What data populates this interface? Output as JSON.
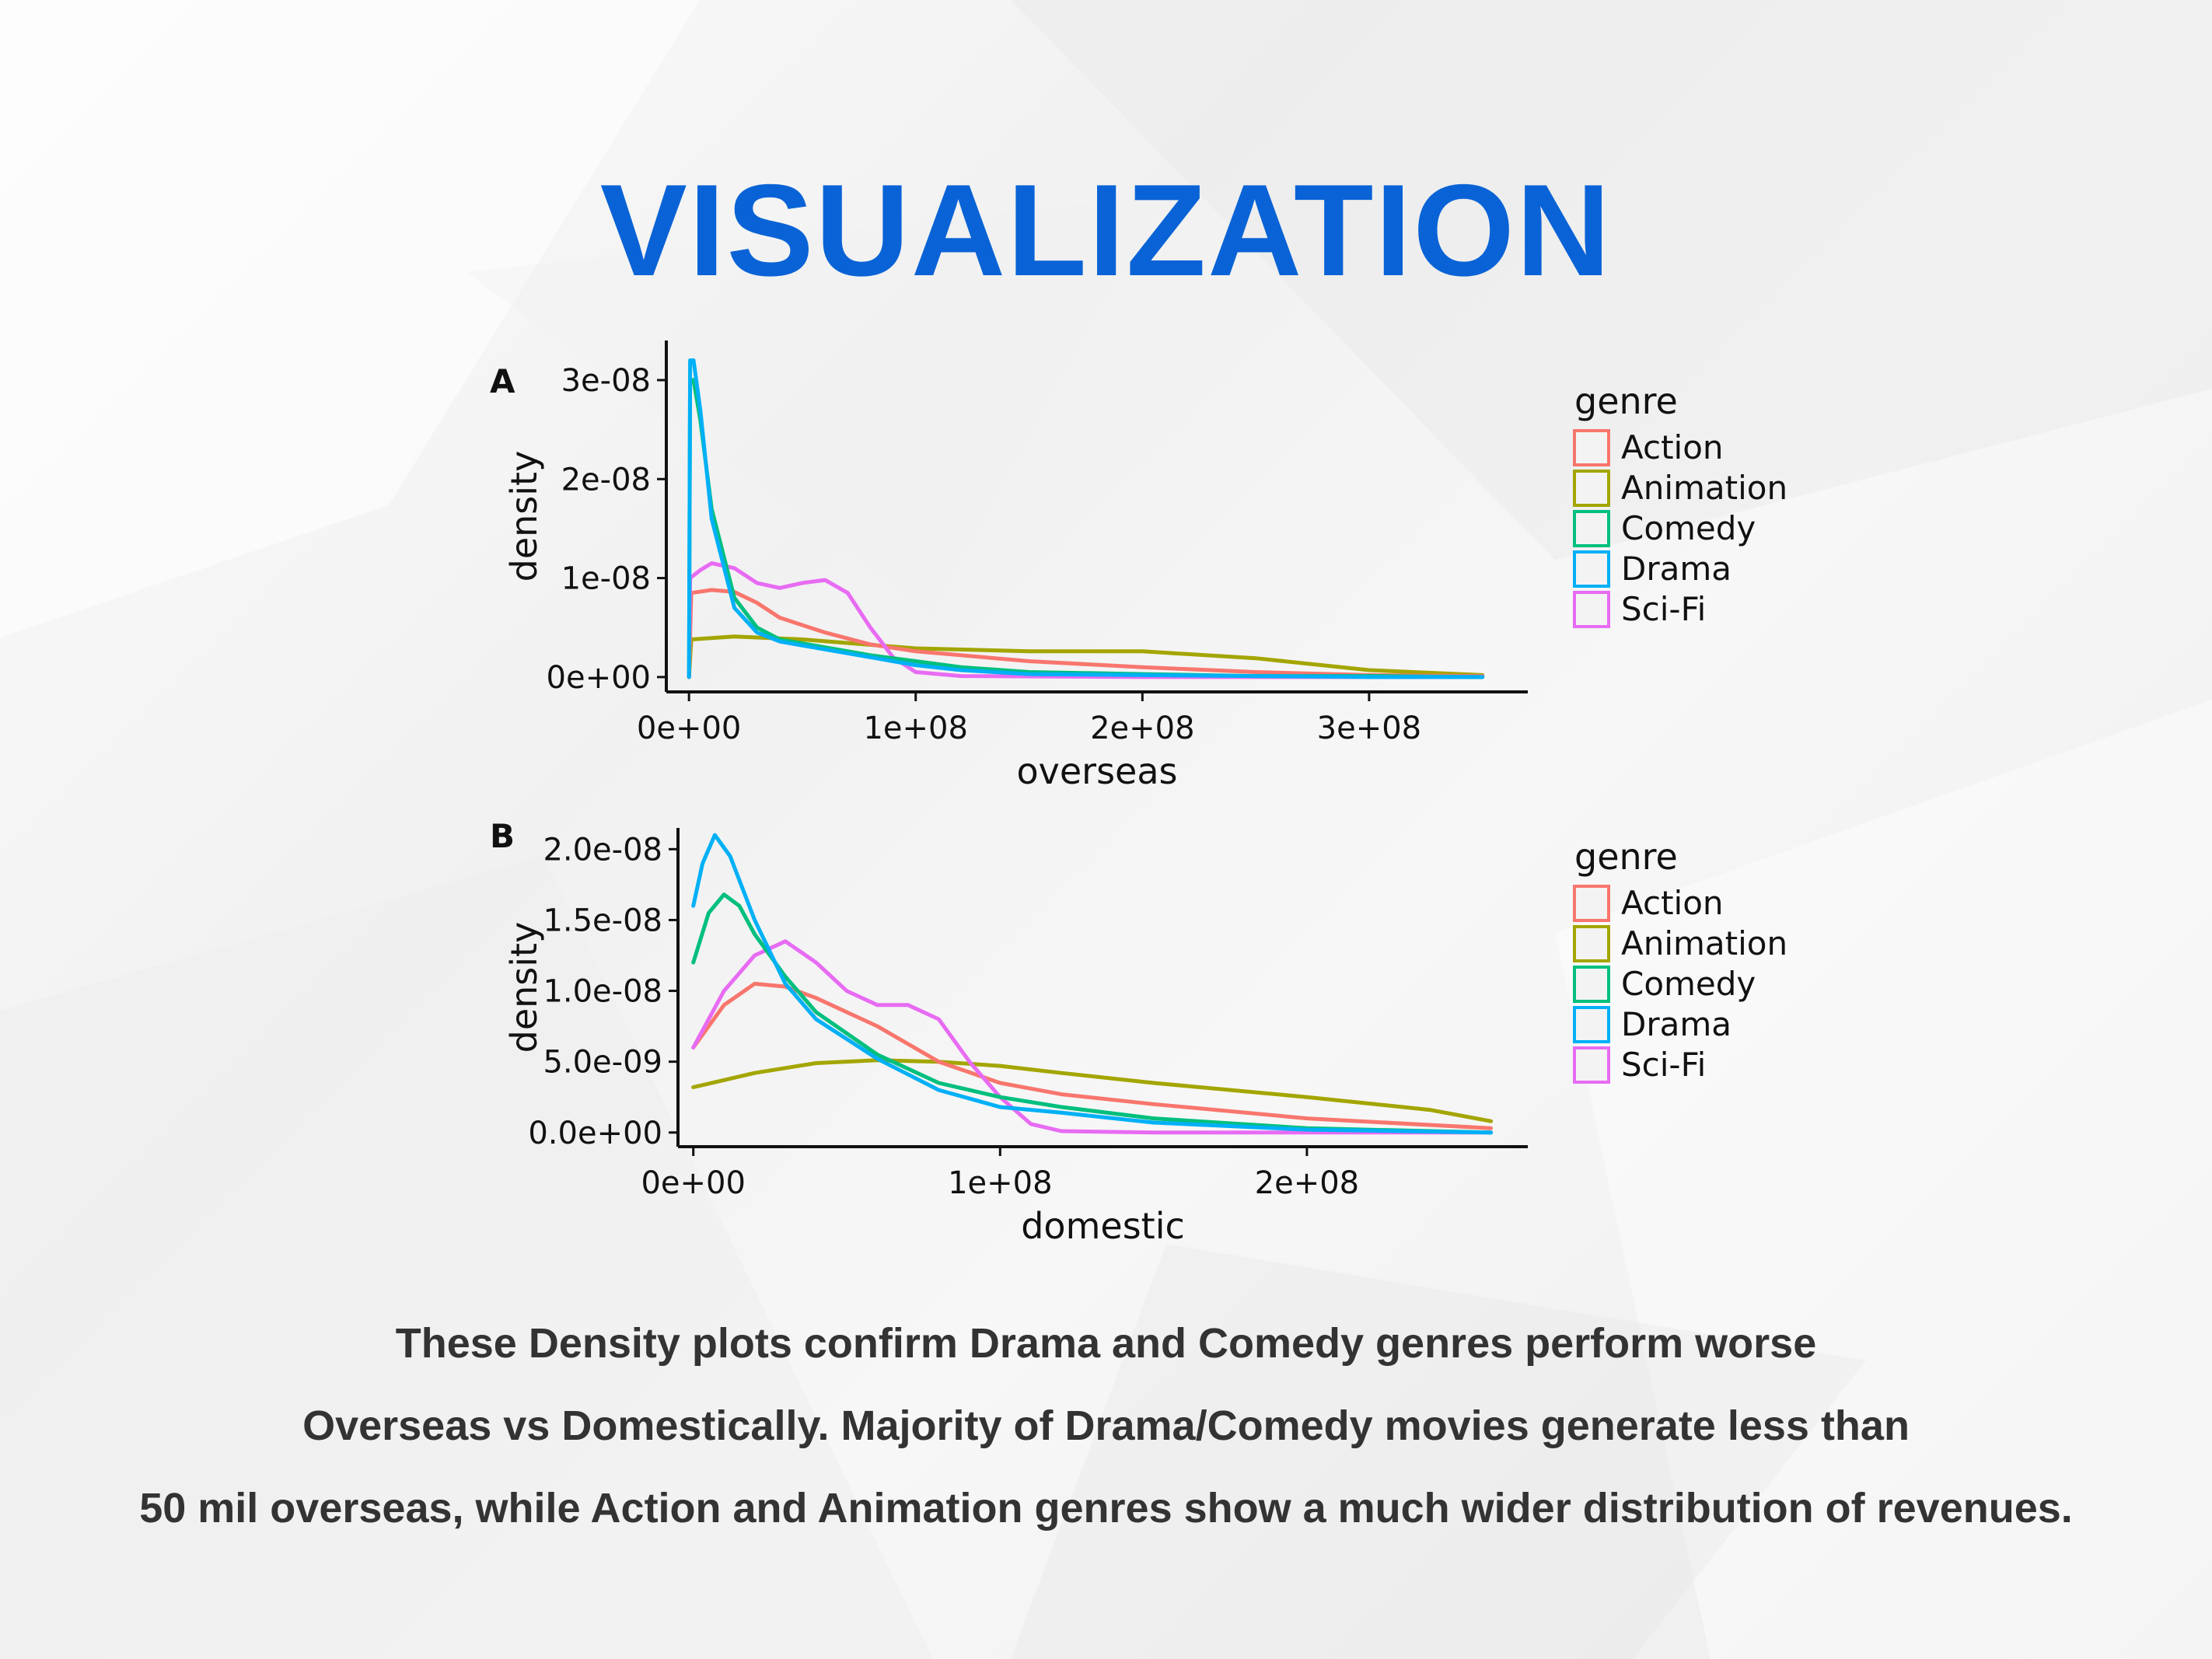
{
  "slide": {
    "title": "VISUALIZATION",
    "caption_lines": [
      "These Density plots confirm Drama and Comedy genres perform worse",
      "Overseas vs Domestically. Majority of Drama/Comedy movies generate less than",
      "50 mil overseas, while Action and Animation genres show a much wider distribution of revenues."
    ],
    "colors": {
      "title": "#0a63d6",
      "caption": "#333333"
    }
  },
  "chart_data": [
    {
      "type": "line",
      "panel": "A",
      "xlabel": "overseas",
      "ylabel": "density",
      "xlim": [
        -10000000,
        370000000
      ],
      "ylim": [
        -1.5e-09,
        3.4e-08
      ],
      "x_ticks": [
        0,
        100000000,
        200000000,
        300000000
      ],
      "x_tick_labels": [
        "0e+00",
        "1e+08",
        "2e+08",
        "3e+08"
      ],
      "y_ticks": [
        0,
        1e-08,
        2e-08,
        3e-08
      ],
      "y_tick_labels": [
        "0e+00",
        "1e-08",
        "2e-08",
        "3e-08"
      ],
      "grid": false,
      "legend": {
        "title": "genre",
        "placement": "right"
      },
      "series": [
        {
          "name": "Action",
          "color": "#f8766d",
          "x": [
            0,
            1000000,
            10000000,
            20000000,
            30000000,
            40000000,
            60000000,
            80000000,
            100000000,
            150000000,
            200000000,
            250000000,
            300000000,
            350000000
          ],
          "y": [
            0,
            8.5e-09,
            8.8e-09,
            8.6e-09,
            7.5e-09,
            6e-09,
            4.5e-09,
            3.3e-09,
            2.6e-09,
            1.6e-09,
            1e-09,
            5e-10,
            2e-10,
            1e-10
          ]
        },
        {
          "name": "Animation",
          "color": "#a3a500",
          "x": [
            0,
            1000000,
            20000000,
            50000000,
            100000000,
            150000000,
            200000000,
            250000000,
            300000000,
            350000000
          ],
          "y": [
            0,
            3.8e-09,
            4.1e-09,
            3.8e-09,
            2.9e-09,
            2.6e-09,
            2.6e-09,
            1.9e-09,
            7e-10,
            2e-10
          ]
        },
        {
          "name": "Comedy",
          "color": "#00bf7d",
          "x": [
            0,
            500000,
            2000000,
            5000000,
            10000000,
            20000000,
            30000000,
            40000000,
            60000000,
            80000000,
            100000000,
            120000000,
            150000000,
            200000000,
            250000000,
            300000000,
            350000000
          ],
          "y": [
            0,
            3e-08,
            3e-08,
            2.6e-08,
            1.7e-08,
            8e-09,
            5e-09,
            3.8e-09,
            3e-09,
            2.2e-09,
            1.6e-09,
            1e-09,
            5e-10,
            3e-10,
            1e-10,
            1e-10,
            0
          ]
        },
        {
          "name": "Drama",
          "color": "#00b0f6",
          "x": [
            0,
            500000,
            2000000,
            5000000,
            10000000,
            20000000,
            30000000,
            40000000,
            60000000,
            80000000,
            100000000,
            120000000,
            150000000,
            200000000,
            250000000,
            300000000,
            350000000
          ],
          "y": [
            0,
            3.2e-08,
            3.2e-08,
            2.7e-08,
            1.6e-08,
            7e-09,
            4.5e-09,
            3.6e-09,
            2.8e-09,
            2e-09,
            1.2e-09,
            7e-10,
            3e-10,
            2e-10,
            1e-10,
            0,
            0
          ]
        },
        {
          "name": "Sci-Fi",
          "color": "#e76bf3",
          "x": [
            0,
            500000,
            5000000,
            10000000,
            20000000,
            30000000,
            40000000,
            50000000,
            60000000,
            70000000,
            80000000,
            90000000,
            100000000,
            120000000,
            200000000,
            350000000
          ],
          "y": [
            0,
            1e-08,
            1.08e-08,
            1.15e-08,
            1.1e-08,
            9.5e-09,
            9e-09,
            9.5e-09,
            9.8e-09,
            8.5e-09,
            5e-09,
            2e-09,
            5e-10,
            1e-10,
            0,
            0
          ]
        }
      ]
    },
    {
      "type": "line",
      "panel": "B",
      "xlabel": "domestic",
      "ylabel": "density",
      "xlim": [
        -5000000,
        272000000
      ],
      "ylim": [
        -1e-09,
        2.15e-08
      ],
      "x_ticks": [
        0,
        100000000,
        200000000
      ],
      "x_tick_labels": [
        "0e+00",
        "1e+08",
        "2e+08"
      ],
      "y_ticks": [
        0,
        5e-09,
        1e-08,
        1.5e-08,
        2e-08
      ],
      "y_tick_labels": [
        "0.0e+00",
        "5.0e-09",
        "1.0e-08",
        "1.5e-08",
        "2.0e-08"
      ],
      "grid": false,
      "legend": {
        "title": "genre",
        "placement": "right"
      },
      "series": [
        {
          "name": "Action",
          "color": "#f8766d",
          "x": [
            0,
            10000000,
            20000000,
            30000000,
            40000000,
            60000000,
            80000000,
            100000000,
            120000000,
            150000000,
            200000000,
            260000000
          ],
          "y": [
            6e-09,
            9e-09,
            1.05e-08,
            1.03e-08,
            9.5e-09,
            7.5e-09,
            5e-09,
            3.5e-09,
            2.7e-09,
            2e-09,
            1e-09,
            3e-10
          ]
        },
        {
          "name": "Animation",
          "color": "#a3a500",
          "x": [
            0,
            20000000,
            40000000,
            60000000,
            80000000,
            100000000,
            120000000,
            150000000,
            200000000,
            240000000,
            260000000
          ],
          "y": [
            3.2e-09,
            4.2e-09,
            4.9e-09,
            5.1e-09,
            5e-09,
            4.7e-09,
            4.2e-09,
            3.5e-09,
            2.5e-09,
            1.6e-09,
            8e-10
          ]
        },
        {
          "name": "Comedy",
          "color": "#00bf7d",
          "x": [
            0,
            5000000,
            10000000,
            15000000,
            20000000,
            30000000,
            40000000,
            60000000,
            80000000,
            100000000,
            120000000,
            150000000,
            200000000,
            260000000
          ],
          "y": [
            1.2e-08,
            1.55e-08,
            1.68e-08,
            1.6e-08,
            1.4e-08,
            1.1e-08,
            8.5e-09,
            5.5e-09,
            3.5e-09,
            2.5e-09,
            1.8e-09,
            1e-09,
            3e-10,
            0
          ]
        },
        {
          "name": "Drama",
          "color": "#00b0f6",
          "x": [
            0,
            3000000,
            7000000,
            12000000,
            20000000,
            30000000,
            40000000,
            60000000,
            80000000,
            100000000,
            120000000,
            150000000,
            200000000,
            260000000
          ],
          "y": [
            1.6e-08,
            1.9e-08,
            2.1e-08,
            1.95e-08,
            1.5e-08,
            1.05e-08,
            8e-09,
            5.2e-09,
            3e-09,
            1.8e-09,
            1.4e-09,
            7e-10,
            2e-10,
            0
          ]
        },
        {
          "name": "Sci-Fi",
          "color": "#e76bf3",
          "x": [
            0,
            10000000,
            20000000,
            30000000,
            40000000,
            50000000,
            60000000,
            70000000,
            80000000,
            90000000,
            100000000,
            110000000,
            120000000,
            150000000,
            260000000
          ],
          "y": [
            6e-09,
            1e-08,
            1.25e-08,
            1.35e-08,
            1.2e-08,
            1e-08,
            9e-09,
            9e-09,
            8e-09,
            5e-09,
            2.5e-09,
            6e-10,
            1e-10,
            0,
            0
          ]
        }
      ]
    }
  ]
}
